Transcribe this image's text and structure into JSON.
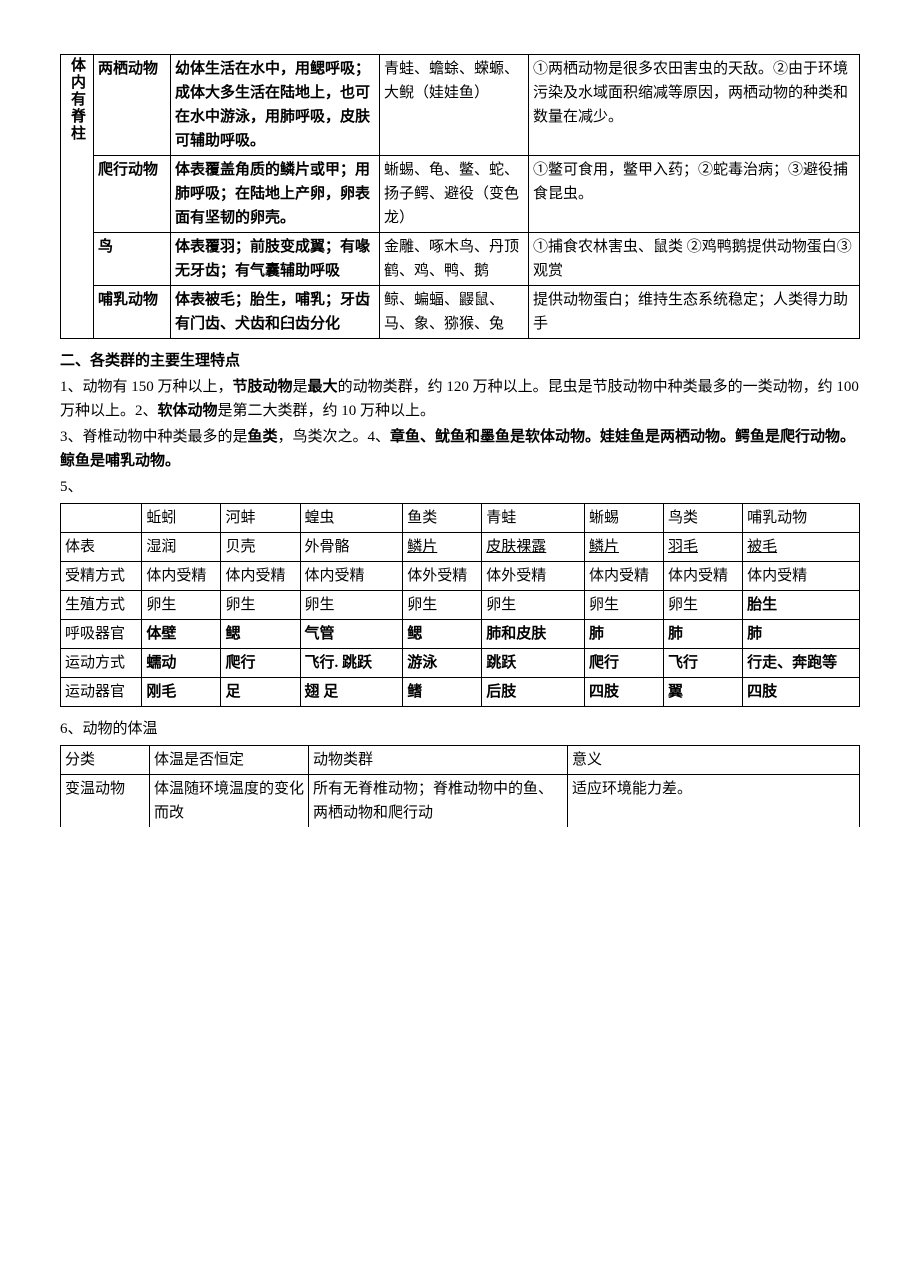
{
  "table1": {
    "group_label": "体内有脊柱",
    "rows": [
      {
        "name": "两栖动物",
        "feature": "幼体生活在水中，用鳃呼吸；成体大多生活在陆地上，也可在水中游泳，用肺呼吸，皮肤可辅助呼吸。",
        "examples": "青蛙、蟾蜍、蝾螈、大鲵（娃娃鱼）",
        "relation": "①两栖动物是很多农田害虫的天敌。②由于环境污染及水域面积缩减等原因，两栖动物的种类和数量在减少。"
      },
      {
        "name": "爬行动物",
        "feature": "体表覆盖角质的鳞片或甲；用肺呼吸；在陆地上产卵，卵表面有坚韧的卵壳。",
        "examples": "蜥蜴、龟、鳖、蛇、扬子鳄、避役（变色龙）",
        "relation": "①鳖可食用，鳖甲入药；②蛇毒治病；③避役捕食昆虫。"
      },
      {
        "name": "鸟",
        "feature": "体表覆羽；前肢变成翼；有喙无牙齿；有气囊辅助呼吸",
        "examples": "金雕、啄木鸟、丹顶鹤、鸡、鸭、鹅",
        "relation": "①捕食农林害虫、鼠类 ②鸡鸭鹅提供动物蛋白③观赏"
      },
      {
        "name": "哺乳动物",
        "feature": "体表被毛；胎生，哺乳；牙齿有门齿、犬齿和臼齿分化",
        "examples": "鲸、蝙蝠、鼹鼠、马、象、猕猴、兔",
        "relation": "提供动物蛋白；维持生态系统稳定；人类得力助手"
      }
    ]
  },
  "section2": {
    "title": "二、各类群的主要生理特点",
    "p1a": "1、动物有 150 万种以上，",
    "p1b": "节肢动物",
    "p1c": "是",
    "p1d": "最大",
    "p1e": "的动物类群，约 120 万种以上。昆虫是节肢动物中种类最多的一类动物，约 100 万种以上。2、",
    "p1f": "软体动物",
    "p1g": "是第二大类群，约 10 万种以上。",
    "p2a": "3、脊椎动物中种类最多的是",
    "p2b": "鱼类",
    "p2c": "，鸟类次之。4、",
    "p2d": "章鱼、鱿鱼和墨鱼是软体动物。娃娃鱼是两栖动物。鳄鱼是爬行动物。鲸鱼是哺乳动物。",
    "p5label": "5、"
  },
  "table2": {
    "header": [
      "",
      "蚯蚓",
      "河蚌",
      "蝗虫",
      "鱼类",
      "青蛙",
      "蜥蜴",
      "鸟类",
      "哺乳动物"
    ],
    "rows": [
      {
        "label": "体表",
        "cells": [
          "湿润",
          "贝壳",
          "外骨骼",
          "鳞片",
          "皮肤裸露",
          "鳞片",
          "羽毛",
          "被毛"
        ],
        "underline": [
          false,
          false,
          false,
          true,
          true,
          true,
          true,
          true
        ],
        "bold": [
          false,
          false,
          false,
          false,
          false,
          false,
          false,
          false
        ]
      },
      {
        "label": "受精方式",
        "cells": [
          "体内受精",
          "体内受精",
          "体内受精",
          "体外受精",
          "体外受精",
          "体内受精",
          "体内受精",
          "体内受精"
        ],
        "underline": [
          false,
          false,
          false,
          false,
          false,
          false,
          false,
          false
        ],
        "bold": [
          false,
          false,
          false,
          false,
          false,
          false,
          false,
          false
        ]
      },
      {
        "label": "生殖方式",
        "cells": [
          "卵生",
          "卵生",
          "卵生",
          "卵生",
          "卵生",
          "卵生",
          "卵生",
          "胎生"
        ],
        "underline": [
          false,
          false,
          false,
          false,
          false,
          false,
          false,
          false
        ],
        "bold": [
          false,
          false,
          false,
          false,
          false,
          false,
          false,
          true
        ]
      },
      {
        "label": "呼吸器官",
        "cells": [
          "体壁",
          "鳃",
          "气管",
          "鳃",
          "肺和皮肤",
          "肺",
          "肺",
          "肺"
        ],
        "underline": [
          false,
          false,
          false,
          false,
          false,
          false,
          false,
          false
        ],
        "bold": [
          true,
          true,
          true,
          true,
          true,
          true,
          true,
          true
        ]
      },
      {
        "label": "运动方式",
        "cells": [
          "蠕动",
          "爬行",
          "飞行. 跳跃",
          "游泳",
          "跳跃",
          "爬行",
          "飞行",
          "行走、奔跑等"
        ],
        "underline": [
          false,
          false,
          false,
          false,
          false,
          false,
          false,
          false
        ],
        "bold": [
          true,
          true,
          true,
          true,
          true,
          true,
          true,
          true
        ]
      },
      {
        "label": "运动器官",
        "cells": [
          "刚毛",
          "足",
          "翅 足",
          "鳍",
          "后肢",
          "四肢",
          "翼",
          "四肢"
        ],
        "underline": [
          false,
          false,
          false,
          false,
          false,
          false,
          false,
          false
        ],
        "bold": [
          true,
          true,
          true,
          true,
          true,
          true,
          true,
          true
        ]
      }
    ]
  },
  "p6label": "6、动物的体温",
  "table3": {
    "header": [
      "分类",
      "体温是否恒定",
      "动物类群",
      "意义"
    ],
    "row": {
      "c0": "变温动物",
      "c1": "体温随环境温度的变化而改",
      "c2": "所有无脊椎动物；脊椎动物中的鱼、两栖动物和爬行动",
      "c3": "适应环境能力差。"
    }
  }
}
